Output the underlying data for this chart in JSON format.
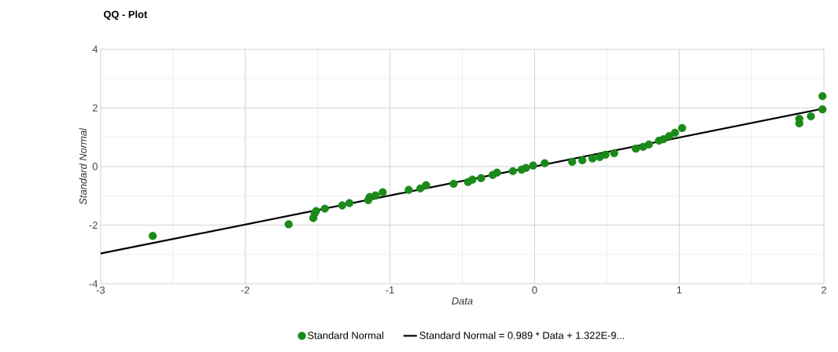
{
  "chart_data": {
    "type": "scatter",
    "title": "QQ - Plot",
    "xlabel": "Data",
    "ylabel": "Standard Normal",
    "xlim": [
      -3,
      2
    ],
    "ylim": [
      -4,
      4
    ],
    "xticks": [
      -3,
      -2,
      -1,
      0,
      1,
      2
    ],
    "yticks": [
      -4,
      -2,
      0,
      2,
      4
    ],
    "grid": true,
    "legend": "bottom",
    "marker": "circle",
    "series": [
      {
        "name": "Standard Normal",
        "color": "#1a8a1a",
        "x": [
          -2.64,
          -1.7,
          -1.53,
          -1.52,
          -1.51,
          -1.45,
          -1.33,
          -1.28,
          -1.15,
          -1.14,
          -1.1,
          -1.05,
          -0.87,
          -0.79,
          -0.75,
          -0.56,
          -0.46,
          -0.43,
          -0.37,
          -0.29,
          -0.26,
          -0.15,
          -0.09,
          -0.06,
          -0.01,
          0.07,
          0.26,
          0.33,
          0.4,
          0.45,
          0.49,
          0.55,
          0.7,
          0.75,
          0.79,
          0.86,
          0.89,
          0.93,
          0.97,
          1.02,
          1.83,
          1.83,
          1.91,
          1.99,
          1.99
        ],
        "values": [
          -2.37,
          -1.97,
          -1.76,
          -1.6,
          -1.52,
          -1.44,
          -1.33,
          -1.25,
          -1.15,
          -1.04,
          -0.99,
          -0.88,
          -0.8,
          -0.75,
          -0.64,
          -0.59,
          -0.53,
          -0.45,
          -0.4,
          -0.29,
          -0.21,
          -0.16,
          -0.11,
          -0.05,
          0.03,
          0.11,
          0.16,
          0.21,
          0.27,
          0.32,
          0.4,
          0.45,
          0.61,
          0.67,
          0.75,
          0.88,
          0.93,
          1.04,
          1.15,
          1.31,
          1.47,
          1.63,
          1.71,
          1.95,
          2.4
        ]
      },
      {
        "name": "Standard Normal = 0.989 * Data + 1.322E-9...",
        "type": "line",
        "color": "#000000",
        "marker": "none",
        "x": [
          -3,
          2
        ],
        "values": [
          -2.97,
          1.98
        ]
      }
    ]
  }
}
